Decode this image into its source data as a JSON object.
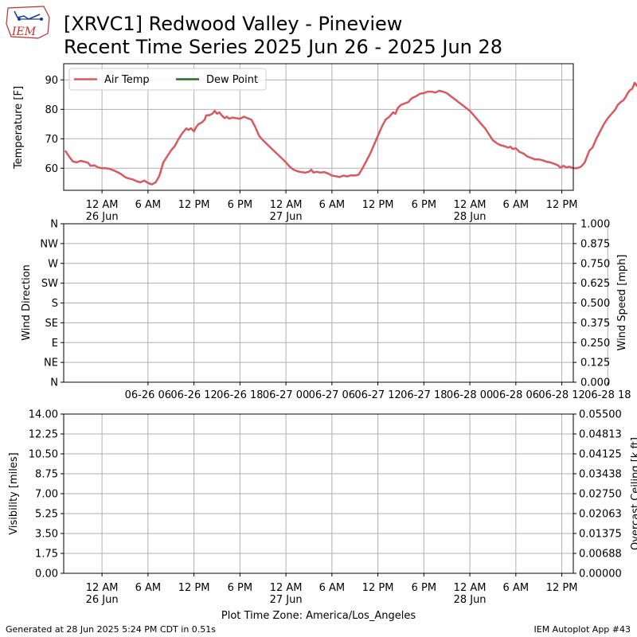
{
  "title_line1": "[XRVC1] Redwood Valley - Pineview",
  "title_line2": "Recent Time Series 2025 Jun 26 - 2025 Jun 28",
  "logo_text": "IEM",
  "footer_left": "Generated at 28 Jun 2025 5:24 PM CDT in 0.51s",
  "footer_right": "IEM Autoplot App #43",
  "xlabel_bottom": "Plot Time Zone: America/Los_Angeles",
  "colors": {
    "air_temp": "#d9595f",
    "dew_point": "#2a6a2a",
    "ceiling_label": "#008000",
    "grid": "#b0b0b0"
  },
  "chart_data": [
    {
      "type": "line",
      "ylabel": "Temperature [F]",
      "ylim": [
        52.5,
        95.5
      ],
      "yticks": [
        60,
        70,
        80,
        90
      ],
      "xlim_hours": [
        -5,
        61.5
      ],
      "xticks": [
        {
          "h": 0,
          "label": "12 AM",
          "sub": "26 Jun"
        },
        {
          "h": 6,
          "label": "6 AM",
          "sub": ""
        },
        {
          "h": 12,
          "label": "12 PM",
          "sub": ""
        },
        {
          "h": 18,
          "label": "6 PM",
          "sub": ""
        },
        {
          "h": 24,
          "label": "12 AM",
          "sub": "27 Jun"
        },
        {
          "h": 30,
          "label": "6 AM",
          "sub": ""
        },
        {
          "h": 36,
          "label": "12 PM",
          "sub": ""
        },
        {
          "h": 42,
          "label": "6 PM",
          "sub": ""
        },
        {
          "h": 48,
          "label": "12 AM",
          "sub": "28 Jun"
        },
        {
          "h": 54,
          "label": "6 AM",
          "sub": ""
        },
        {
          "h": 60,
          "label": "12 PM",
          "sub": ""
        }
      ],
      "grid": true,
      "legend_placement": "upper-left",
      "series": [
        {
          "name": "Air Temp",
          "color": "#d9595f",
          "points": [
            [
              -4.8,
              66
            ],
            [
              -4.3,
              64
            ],
            [
              -3.8,
              62.3
            ],
            [
              -3.3,
              62
            ],
            [
              -2.8,
              62.5
            ],
            [
              -2.3,
              62.2
            ],
            [
              -1.8,
              61.8
            ],
            [
              -1.5,
              60.8
            ],
            [
              -1,
              61
            ],
            [
              -0.5,
              60.3
            ],
            [
              0,
              60
            ],
            [
              0.5,
              60
            ],
            [
              1,
              59.8
            ],
            [
              1.5,
              59.3
            ],
            [
              2,
              58.7
            ],
            [
              2.5,
              58
            ],
            [
              3,
              57
            ],
            [
              3.5,
              56.5
            ],
            [
              4,
              56.2
            ],
            [
              4.5,
              55.6
            ],
            [
              5,
              55.2
            ],
            [
              5.5,
              55.8
            ],
            [
              6,
              55
            ],
            [
              6.5,
              54.5
            ],
            [
              7,
              55.2
            ],
            [
              7.5,
              57.5
            ],
            [
              8,
              62
            ],
            [
              8.5,
              64
            ],
            [
              9,
              66
            ],
            [
              9.5,
              67.5
            ],
            [
              10,
              70
            ],
            [
              10.5,
              72
            ],
            [
              11,
              73.5
            ],
            [
              11.3,
              73
            ],
            [
              11.6,
              73.6
            ],
            [
              12,
              72.5
            ],
            [
              12.3,
              74
            ],
            [
              12.6,
              75
            ],
            [
              13,
              75.5
            ],
            [
              13.4,
              76.5
            ],
            [
              13.6,
              78
            ],
            [
              14,
              78
            ],
            [
              14.4,
              78.5
            ],
            [
              14.7,
              79.5
            ],
            [
              15,
              78.5
            ],
            [
              15.3,
              79
            ],
            [
              15.6,
              78
            ],
            [
              16,
              77
            ],
            [
              16.3,
              77.5
            ],
            [
              16.6,
              76.8
            ],
            [
              17,
              77.2
            ],
            [
              17.5,
              77
            ],
            [
              18,
              76.8
            ],
            [
              18.5,
              77.5
            ],
            [
              19,
              77
            ],
            [
              19.5,
              76.5
            ],
            [
              20,
              74
            ],
            [
              20.5,
              71
            ],
            [
              21,
              69.5
            ],
            [
              22,
              67
            ],
            [
              23,
              64.5
            ],
            [
              24,
              62
            ],
            [
              24.5,
              60.5
            ],
            [
              25,
              59.5
            ],
            [
              25.5,
              59
            ],
            [
              26,
              58.7
            ],
            [
              26.5,
              58.5
            ],
            [
              27,
              58.8
            ],
            [
              27.3,
              59.5
            ],
            [
              27.6,
              58.5
            ],
            [
              28,
              58.8
            ],
            [
              28.5,
              58.5
            ],
            [
              29,
              58.7
            ],
            [
              29.5,
              58.2
            ],
            [
              30,
              57.5
            ],
            [
              30.5,
              57.3
            ],
            [
              31,
              57
            ],
            [
              31.5,
              57.5
            ],
            [
              32,
              57.2
            ],
            [
              32.5,
              57.6
            ],
            [
              33,
              57.5
            ],
            [
              33.5,
              57.8
            ],
            [
              34,
              60
            ],
            [
              34.5,
              62.5
            ],
            [
              35,
              65
            ],
            [
              35.5,
              68
            ],
            [
              36,
              71
            ],
            [
              36.5,
              74
            ],
            [
              37,
              76.5
            ],
            [
              37.5,
              77.5
            ],
            [
              38,
              79
            ],
            [
              38.3,
              78.5
            ],
            [
              38.6,
              80.5
            ],
            [
              39,
              81.5
            ],
            [
              39.5,
              82
            ],
            [
              40,
              82.5
            ],
            [
              40.3,
              83.5
            ],
            [
              40.6,
              84
            ],
            [
              41,
              84.5
            ],
            [
              41.5,
              85.3
            ],
            [
              42,
              85.5
            ],
            [
              42.5,
              86
            ],
            [
              43,
              86
            ],
            [
              43.5,
              85.7
            ],
            [
              44,
              86.3
            ],
            [
              44.5,
              86
            ],
            [
              45,
              85.5
            ],
            [
              45.5,
              84.5
            ],
            [
              46,
              83.5
            ],
            [
              46.5,
              82.5
            ],
            [
              47,
              81.5
            ],
            [
              47.5,
              80.5
            ],
            [
              48,
              79.5
            ],
            [
              48.5,
              78
            ],
            [
              49,
              76.5
            ],
            [
              49.5,
              75
            ],
            [
              50,
              73.5
            ],
            [
              50.5,
              71.5
            ],
            [
              51,
              69.5
            ],
            [
              51.5,
              68.5
            ],
            [
              52,
              67.8
            ],
            [
              52.5,
              67.5
            ],
            [
              53,
              67
            ],
            [
              53.3,
              67.3
            ],
            [
              53.6,
              66.5
            ],
            [
              54,
              66.8
            ],
            [
              54.5,
              65.5
            ],
            [
              55,
              65
            ],
            [
              55.5,
              64
            ],
            [
              56,
              63.5
            ],
            [
              56.5,
              63
            ],
            [
              57,
              63
            ],
            [
              57.5,
              62.7
            ],
            [
              58,
              62.2
            ],
            [
              58.5,
              62
            ],
            [
              59,
              61.5
            ],
            [
              59.5,
              61
            ],
            [
              59.8,
              60.2
            ],
            [
              60.2,
              60.8
            ],
            [
              60.6,
              60.3
            ],
            [
              61,
              60.5
            ],
            [
              61.5,
              60
            ],
            [
              62,
              60
            ],
            [
              62.5,
              60.5
            ],
            [
              63,
              62
            ],
            [
              63.3,
              64
            ],
            [
              63.6,
              66
            ],
            [
              64,
              67
            ],
            [
              64.5,
              70
            ],
            [
              65,
              72.5
            ],
            [
              65.5,
              75
            ],
            [
              66,
              77
            ],
            [
              66.5,
              78.5
            ],
            [
              67,
              80
            ],
            [
              67.3,
              81.5
            ],
            [
              67.7,
              82.5
            ],
            [
              68,
              83
            ],
            [
              68.3,
              84
            ],
            [
              68.6,
              85.5
            ],
            [
              68.9,
              86.5
            ],
            [
              69.2,
              87
            ],
            [
              69.5,
              89
            ],
            [
              69.8,
              88
            ],
            [
              70.1,
              90
            ],
            [
              70.4,
              90.5
            ],
            [
              70.7,
              91.5
            ],
            [
              71,
              92
            ],
            [
              71.3,
              93
            ],
            [
              71.6,
              92.5
            ],
            [
              71.9,
              93.5
            ],
            [
              72.2,
              93
            ],
            [
              72.5,
              92
            ],
            [
              72.8,
              92.5
            ]
          ]
        },
        {
          "name": "Dew Point",
          "color": "#2a6a2a",
          "points": []
        }
      ]
    },
    {
      "type": "line",
      "ylabel": "Wind Direction",
      "y2label": "Wind Speed [mph]",
      "yticks": [
        "N",
        "NE",
        "E",
        "SE",
        "S",
        "SW",
        "W",
        "NW",
        "N"
      ],
      "y2ticks": [
        "0.000",
        "0.125",
        "0.250",
        "0.375",
        "0.500",
        "0.625",
        "0.750",
        "0.875",
        "1.000"
      ],
      "xticks": [
        "06-26 06",
        "06-26 12",
        "06-26 18",
        "06-27 00",
        "06-27 06",
        "06-27 12",
        "06-27 18",
        "06-28 00",
        "06-28 06",
        "06-28 12",
        "06-28 18"
      ],
      "grid": true,
      "series": []
    },
    {
      "type": "line",
      "ylabel": "Visibility [miles]",
      "y2label": "Overcast Ceiling [k ft]",
      "yticks": [
        "0.00",
        "1.75",
        "3.50",
        "5.25",
        "7.00",
        "8.75",
        "10.50",
        "12.25",
        "14.00"
      ],
      "y2ticks": [
        "0.00000",
        "0.00688",
        "0.01375",
        "0.02063",
        "0.02750",
        "0.03438",
        "0.04125",
        "0.04813",
        "0.05500"
      ],
      "xticks": [
        {
          "label": "12 AM",
          "sub": "26 Jun"
        },
        {
          "label": "6 AM",
          "sub": ""
        },
        {
          "label": "12 PM",
          "sub": ""
        },
        {
          "label": "6 PM",
          "sub": ""
        },
        {
          "label": "12 AM",
          "sub": "27 Jun"
        },
        {
          "label": "6 AM",
          "sub": ""
        },
        {
          "label": "12 PM",
          "sub": ""
        },
        {
          "label": "6 PM",
          "sub": ""
        },
        {
          "label": "12 AM",
          "sub": "28 Jun"
        },
        {
          "label": "6 AM",
          "sub": ""
        },
        {
          "label": "12 PM",
          "sub": ""
        }
      ],
      "grid": true,
      "series": []
    }
  ]
}
